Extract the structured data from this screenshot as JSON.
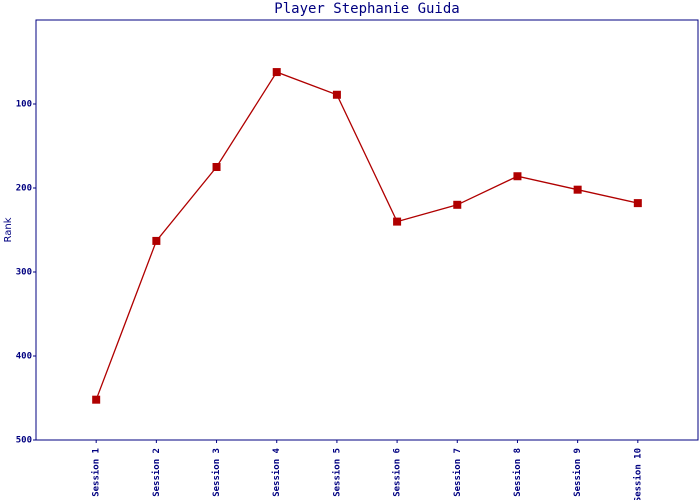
{
  "chart_data": {
    "type": "line",
    "title": "Player Stephanie Guida",
    "ylabel": "Rank",
    "categories": [
      "Session 1",
      "Session 2",
      "Session 3",
      "Session 4",
      "Session 5",
      "Session 6",
      "Session 7",
      "Session 8",
      "Session 9",
      "Session 10"
    ],
    "values": [
      452,
      263,
      175,
      62,
      89,
      240,
      220,
      186,
      202,
      218
    ],
    "color": "#b00000",
    "axis_color": "#000080",
    "ylim": [
      500,
      0
    ],
    "yticks": [
      100,
      200,
      300,
      400,
      500
    ],
    "grid": false
  }
}
